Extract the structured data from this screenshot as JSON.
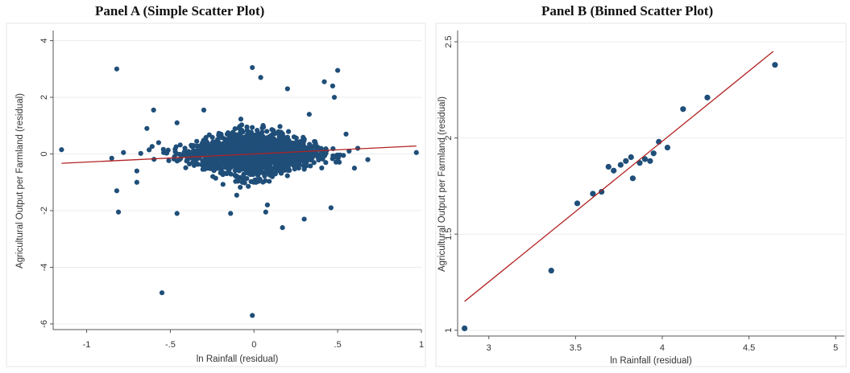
{
  "panels": [
    {
      "title": "Panel A (Simple Scatter Plot)",
      "chart_data": {
        "type": "scatter",
        "xlabel": "ln Rainfall (residual)",
        "ylabel": "Agricultural Output per Farmland (residual)",
        "xlim": [
          -1.2,
          1.0
        ],
        "ylim": [
          -6.2,
          4.3
        ],
        "xticks": [
          -1,
          -0.5,
          0,
          0.5,
          1
        ],
        "xtick_labels": [
          "-1",
          "-.5",
          "0",
          ".5",
          "1"
        ],
        "yticks": [
          -6,
          -4,
          -2,
          0,
          2,
          4
        ],
        "ytick_labels": [
          "-6",
          "-4",
          "-2",
          "0",
          "2",
          "4"
        ],
        "grid": "horizontal",
        "marker_color": "#1f4e79",
        "fit_line_color": "#b22222",
        "fit_line": {
          "x": [
            -1.15,
            0.97
          ],
          "y": [
            -0.33,
            0.28
          ]
        },
        "cloud": {
          "n": 1900,
          "x_center": 0.0,
          "x_sd": 0.18,
          "y_center": 0.0,
          "y_sd": 0.42
        },
        "points": [
          {
            "x": -1.15,
            "y": 0.15
          },
          {
            "x": -0.82,
            "y": 3.0
          },
          {
            "x": -0.55,
            "y": -4.9
          },
          {
            "x": -0.01,
            "y": -5.7
          },
          {
            "x": -0.01,
            "y": 3.05
          },
          {
            "x": 0.04,
            "y": 2.7
          },
          {
            "x": 0.42,
            "y": 2.55
          },
          {
            "x": 0.5,
            "y": 2.95
          },
          {
            "x": 0.47,
            "y": 2.4
          },
          {
            "x": -0.6,
            "y": 1.55
          },
          {
            "x": -0.46,
            "y": 1.1
          },
          {
            "x": 0.2,
            "y": 2.3
          },
          {
            "x": 0.48,
            "y": 2.0
          },
          {
            "x": -0.85,
            "y": -0.15
          },
          {
            "x": -0.82,
            "y": -1.3
          },
          {
            "x": -0.81,
            "y": -2.05
          },
          {
            "x": -0.46,
            "y": -2.1
          },
          {
            "x": -0.14,
            "y": -2.1
          },
          {
            "x": 0.07,
            "y": -2.05
          },
          {
            "x": 0.08,
            "y": -1.8
          },
          {
            "x": 0.17,
            "y": -2.6
          },
          {
            "x": 0.3,
            "y": -2.3
          },
          {
            "x": 0.46,
            "y": -1.9
          },
          {
            "x": 0.62,
            "y": 0.2
          },
          {
            "x": 0.68,
            "y": -0.2
          },
          {
            "x": 0.97,
            "y": 0.05
          },
          {
            "x": -0.7,
            "y": -0.6
          },
          {
            "x": -0.7,
            "y": -1.0
          },
          {
            "x": -0.78,
            "y": 0.05
          },
          {
            "x": -0.57,
            "y": 0.4
          },
          {
            "x": 0.55,
            "y": 0.7
          },
          {
            "x": 0.6,
            "y": -0.5
          },
          {
            "x": -0.64,
            "y": 0.9
          },
          {
            "x": 0.33,
            "y": 1.4
          },
          {
            "x": -0.3,
            "y": 1.55
          }
        ]
      }
    },
    {
      "title": "Panel B (Binned Scatter Plot)",
      "chart_data": {
        "type": "scatter",
        "xlabel": "ln Rainfall (residual)",
        "ylabel": "Agricultural Output per Farmland (residual)",
        "xlim": [
          2.82,
          5.05
        ],
        "ylim": [
          0.97,
          2.55
        ],
        "xticks": [
          3,
          3.5,
          4,
          4.5,
          5
        ],
        "xtick_labels": [
          "3",
          "3.5",
          "4",
          "4.5",
          "5"
        ],
        "yticks": [
          1,
          1.5,
          2,
          2.5
        ],
        "ytick_labels": [
          "1",
          "1.5",
          "2",
          "2.5"
        ],
        "grid": "horizontal",
        "marker_color": "#1f4e79",
        "fit_line_color": "#b22222",
        "fit_line": {
          "x": [
            2.86,
            4.64
          ],
          "y": [
            1.15,
            2.45
          ]
        },
        "points": [
          {
            "x": 2.86,
            "y": 1.01
          },
          {
            "x": 3.36,
            "y": 1.31
          },
          {
            "x": 3.51,
            "y": 1.66
          },
          {
            "x": 3.6,
            "y": 1.71
          },
          {
            "x": 3.65,
            "y": 1.72
          },
          {
            "x": 3.69,
            "y": 1.85
          },
          {
            "x": 3.72,
            "y": 1.83
          },
          {
            "x": 3.76,
            "y": 1.86
          },
          {
            "x": 3.79,
            "y": 1.88
          },
          {
            "x": 3.82,
            "y": 1.9
          },
          {
            "x": 3.83,
            "y": 1.79
          },
          {
            "x": 3.87,
            "y": 1.87
          },
          {
            "x": 3.9,
            "y": 1.89
          },
          {
            "x": 3.93,
            "y": 1.88
          },
          {
            "x": 3.95,
            "y": 1.92
          },
          {
            "x": 3.98,
            "y": 1.98
          },
          {
            "x": 4.03,
            "y": 1.95
          },
          {
            "x": 4.12,
            "y": 2.15
          },
          {
            "x": 4.26,
            "y": 2.21
          },
          {
            "x": 4.65,
            "y": 2.38
          }
        ]
      }
    }
  ]
}
